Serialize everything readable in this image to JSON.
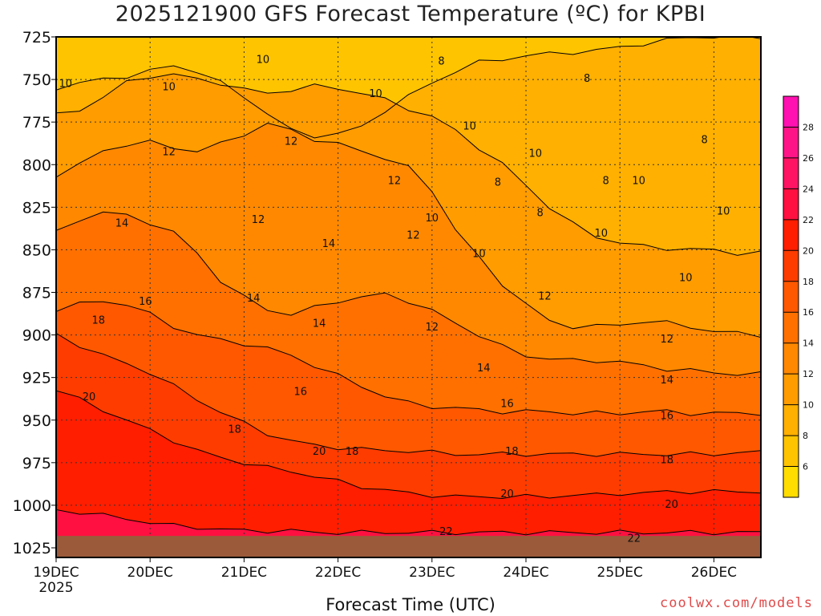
{
  "title": "2025121900 GFS Forecast Temperature (ºC) for KPBI",
  "xlabel": "Forecast Time (UTC)",
  "credit": "coolwx.com/models",
  "colors": {
    "frame": "#000000",
    "ground": "#9b5a3a",
    "grid": "#333333"
  },
  "chart_data": {
    "type": "heatmap",
    "title": "2025121900 GFS Forecast Temperature (ºC) for KPBI",
    "xlabel": "Forecast Time (UTC)",
    "ylabel": "",
    "x_ticks": [
      "19DEC",
      "20DEC",
      "21DEC",
      "22DEC",
      "23DEC",
      "24DEC",
      "25DEC",
      "26DEC"
    ],
    "x_year": "2025",
    "y_ticks": [
      725,
      750,
      775,
      800,
      825,
      850,
      875,
      900,
      925,
      950,
      975,
      1000,
      1025
    ],
    "ylim": [
      725,
      1025
    ],
    "y_inverted": true,
    "colorbar": {
      "ticks": [
        6,
        8,
        10,
        12,
        14,
        16,
        18,
        20,
        22,
        24,
        26,
        28
      ],
      "range": [
        4,
        30
      ],
      "colors": [
        "#ffdd00",
        "#ffc400",
        "#ffb000",
        "#ff9c00",
        "#ff8800",
        "#ff7000",
        "#ff5800",
        "#ff3c00",
        "#ff1e00",
        "#ff1040",
        "#ff1464",
        "#ff1488",
        "#ff10b0"
      ]
    },
    "isotherms": [
      {
        "value": 8,
        "levels": [
          [
            0,
            755
          ],
          [
            1,
            752
          ],
          [
            2,
            750
          ],
          [
            3,
            748
          ],
          [
            4,
            745
          ],
          [
            5,
            742
          ],
          [
            6,
            745
          ],
          [
            7,
            752
          ],
          [
            8,
            760
          ],
          [
            9,
            770
          ],
          [
            10,
            780
          ],
          [
            11,
            783
          ],
          [
            12,
            782
          ],
          [
            13,
            778
          ],
          [
            14,
            768
          ],
          [
            15,
            760
          ],
          [
            16,
            752
          ],
          [
            17,
            745
          ],
          [
            18,
            740
          ],
          [
            19,
            738
          ],
          [
            20,
            736
          ],
          [
            21,
            735
          ],
          [
            22,
            734
          ],
          [
            23,
            733
          ],
          [
            24,
            731
          ],
          [
            25,
            729
          ],
          [
            26,
            727
          ],
          [
            27,
            725
          ],
          [
            28,
            725
          ],
          [
            29,
            725
          ],
          [
            30,
            725
          ]
        ]
      },
      {
        "value": 10,
        "levels": [
          [
            0,
            771
          ],
          [
            1,
            768
          ],
          [
            2,
            760
          ],
          [
            3,
            752
          ],
          [
            4,
            748
          ],
          [
            5,
            747
          ],
          [
            6,
            750
          ],
          [
            7,
            752
          ],
          [
            8,
            756
          ],
          [
            9,
            758
          ],
          [
            10,
            756
          ],
          [
            11,
            754
          ],
          [
            12,
            755
          ],
          [
            13,
            758
          ],
          [
            14,
            762
          ],
          [
            15,
            767
          ],
          [
            16,
            772
          ],
          [
            17,
            780
          ],
          [
            18,
            790
          ],
          [
            19,
            800
          ],
          [
            20,
            812
          ],
          [
            21,
            825
          ],
          [
            22,
            835
          ],
          [
            23,
            842
          ],
          [
            24,
            846
          ],
          [
            25,
            848
          ],
          [
            26,
            849
          ],
          [
            27,
            850
          ],
          [
            28,
            850
          ],
          [
            29,
            852
          ],
          [
            30,
            852
          ]
        ]
      },
      {
        "value": 12,
        "levels": [
          [
            0,
            806
          ],
          [
            1,
            800
          ],
          [
            2,
            792
          ],
          [
            3,
            788
          ],
          [
            4,
            787
          ],
          [
            5,
            790
          ],
          [
            6,
            792
          ],
          [
            7,
            788
          ],
          [
            8,
            782
          ],
          [
            9,
            776
          ],
          [
            10,
            780
          ],
          [
            11,
            785
          ],
          [
            12,
            788
          ],
          [
            13,
            792
          ],
          [
            14,
            796
          ],
          [
            15,
            802
          ],
          [
            16,
            815
          ],
          [
            17,
            838
          ],
          [
            18,
            855
          ],
          [
            19,
            870
          ],
          [
            20,
            882
          ],
          [
            21,
            892
          ],
          [
            22,
            895
          ],
          [
            23,
            895
          ],
          [
            24,
            894
          ],
          [
            25,
            892
          ],
          [
            26,
            893
          ],
          [
            27,
            895
          ],
          [
            28,
            898
          ],
          [
            29,
            899
          ],
          [
            30,
            900
          ]
        ]
      },
      {
        "value": 14,
        "levels": [
          [
            0,
            840
          ],
          [
            1,
            832
          ],
          [
            2,
            828
          ],
          [
            3,
            830
          ],
          [
            4,
            834
          ],
          [
            5,
            840
          ],
          [
            6,
            852
          ],
          [
            7,
            868
          ],
          [
            8,
            878
          ],
          [
            9,
            885
          ],
          [
            10,
            888
          ],
          [
            11,
            884
          ],
          [
            12,
            880
          ],
          [
            13,
            878
          ],
          [
            14,
            876
          ],
          [
            15,
            880
          ],
          [
            16,
            886
          ],
          [
            17,
            893
          ],
          [
            18,
            900
          ],
          [
            19,
            907
          ],
          [
            20,
            912
          ],
          [
            21,
            914
          ],
          [
            22,
            915
          ],
          [
            23,
            915
          ],
          [
            24,
            916
          ],
          [
            25,
            918
          ],
          [
            26,
            920
          ],
          [
            27,
            921
          ],
          [
            28,
            922
          ],
          [
            29,
            923
          ],
          [
            30,
            923
          ]
        ]
      },
      {
        "value": 16,
        "levels": [
          [
            0,
            885
          ],
          [
            1,
            882
          ],
          [
            2,
            880
          ],
          [
            3,
            882
          ],
          [
            4,
            888
          ],
          [
            5,
            895
          ],
          [
            6,
            900
          ],
          [
            7,
            903
          ],
          [
            8,
            905
          ],
          [
            9,
            908
          ],
          [
            10,
            912
          ],
          [
            11,
            918
          ],
          [
            12,
            924
          ],
          [
            13,
            930
          ],
          [
            14,
            936
          ],
          [
            15,
            940
          ],
          [
            16,
            942
          ],
          [
            17,
            943
          ],
          [
            18,
            944
          ],
          [
            19,
            945
          ],
          [
            20,
            945
          ],
          [
            21,
            945
          ],
          [
            22,
            946
          ],
          [
            23,
            946
          ],
          [
            24,
            946
          ],
          [
            25,
            945
          ],
          [
            26,
            945
          ],
          [
            27,
            946
          ],
          [
            28,
            946
          ],
          [
            29,
            946
          ],
          [
            30,
            946
          ]
        ]
      },
      {
        "value": 18,
        "levels": [
          [
            0,
            900
          ],
          [
            1,
            906
          ],
          [
            2,
            912
          ],
          [
            3,
            917
          ],
          [
            4,
            922
          ],
          [
            5,
            930
          ],
          [
            6,
            938
          ],
          [
            7,
            945
          ],
          [
            8,
            952
          ],
          [
            9,
            958
          ],
          [
            10,
            962
          ],
          [
            11,
            965
          ],
          [
            12,
            966
          ],
          [
            13,
            967
          ],
          [
            14,
            968
          ],
          [
            15,
            968
          ],
          [
            16,
            969
          ],
          [
            17,
            970
          ],
          [
            18,
            970
          ],
          [
            19,
            970
          ],
          [
            20,
            970
          ],
          [
            21,
            970
          ],
          [
            22,
            970
          ],
          [
            23,
            970
          ],
          [
            24,
            970
          ],
          [
            25,
            970
          ],
          [
            26,
            970
          ],
          [
            27,
            970
          ],
          [
            28,
            970
          ],
          [
            29,
            969
          ],
          [
            30,
            969
          ]
        ]
      },
      {
        "value": 20,
        "levels": [
          [
            0,
            932
          ],
          [
            1,
            938
          ],
          [
            2,
            944
          ],
          [
            3,
            950
          ],
          [
            4,
            956
          ],
          [
            5,
            962
          ],
          [
            6,
            968
          ],
          [
            7,
            972
          ],
          [
            8,
            975
          ],
          [
            9,
            978
          ],
          [
            10,
            980
          ],
          [
            11,
            983
          ],
          [
            12,
            986
          ],
          [
            13,
            989
          ],
          [
            14,
            991
          ],
          [
            15,
            993
          ],
          [
            16,
            994
          ],
          [
            17,
            995
          ],
          [
            18,
            995
          ],
          [
            19,
            995
          ],
          [
            20,
            995
          ],
          [
            21,
            995
          ],
          [
            22,
            994
          ],
          [
            23,
            994
          ],
          [
            24,
            993
          ],
          [
            25,
            993
          ],
          [
            26,
            992
          ],
          [
            27,
            992
          ],
          [
            28,
            992
          ],
          [
            29,
            992
          ],
          [
            30,
            992
          ]
        ]
      },
      {
        "value": 22,
        "levels": [
          [
            0,
            1003
          ],
          [
            1,
            1004
          ],
          [
            2,
            1006
          ],
          [
            3,
            1008
          ],
          [
            4,
            1010
          ],
          [
            5,
            1012
          ],
          [
            6,
            1013
          ],
          [
            7,
            1014
          ],
          [
            8,
            1015
          ],
          [
            9,
            1015
          ],
          [
            10,
            1015
          ],
          [
            11,
            1016
          ],
          [
            12,
            1016
          ],
          [
            13,
            1016
          ],
          [
            14,
            1016
          ],
          [
            15,
            1016
          ],
          [
            16,
            1016
          ],
          [
            17,
            1016
          ],
          [
            18,
            1016
          ],
          [
            19,
            1016
          ],
          [
            20,
            1016
          ],
          [
            21,
            1016
          ],
          [
            22,
            1016
          ],
          [
            23,
            1016
          ],
          [
            24,
            1016
          ],
          [
            25,
            1016
          ],
          [
            26,
            1016
          ],
          [
            27,
            1016
          ],
          [
            28,
            1016
          ],
          [
            29,
            1016
          ],
          [
            30,
            1016
          ]
        ]
      }
    ],
    "contour_labels": [
      {
        "text": "10",
        "x": 0.1,
        "p": 752
      },
      {
        "text": "10",
        "x": 1.2,
        "p": 754
      },
      {
        "text": "10",
        "x": 2.2,
        "p": 738
      },
      {
        "text": "8",
        "x": 4.1,
        "p": 739
      },
      {
        "text": "10",
        "x": 3.4,
        "p": 758
      },
      {
        "text": "8",
        "x": 5.65,
        "p": 749
      },
      {
        "text": "10",
        "x": 4.4,
        "p": 777
      },
      {
        "text": "12",
        "x": 1.2,
        "p": 792
      },
      {
        "text": "12",
        "x": 2.5,
        "p": 786
      },
      {
        "text": "12",
        "x": 3.6,
        "p": 809
      },
      {
        "text": "10",
        "x": 5.1,
        "p": 793
      },
      {
        "text": "8",
        "x": 4.7,
        "p": 810
      },
      {
        "text": "10",
        "x": 6.2,
        "p": 809
      },
      {
        "text": "8",
        "x": 5.15,
        "p": 828
      },
      {
        "text": "8",
        "x": 5.85,
        "p": 809
      },
      {
        "text": "8",
        "x": 6.9,
        "p": 785
      },
      {
        "text": "10",
        "x": 4.0,
        "p": 831
      },
      {
        "text": "12",
        "x": 2.15,
        "p": 832
      },
      {
        "text": "12",
        "x": 3.8,
        "p": 841
      },
      {
        "text": "14",
        "x": 0.7,
        "p": 834
      },
      {
        "text": "14",
        "x": 2.9,
        "p": 846
      },
      {
        "text": "10",
        "x": 4.5,
        "p": 852
      },
      {
        "text": "10",
        "x": 5.8,
        "p": 840
      },
      {
        "text": "10",
        "x": 7.1,
        "p": 827
      },
      {
        "text": "10",
        "x": 6.7,
        "p": 866
      },
      {
        "text": "12",
        "x": 5.2,
        "p": 877
      },
      {
        "text": "12",
        "x": 4.0,
        "p": 895
      },
      {
        "text": "14",
        "x": 2.1,
        "p": 878
      },
      {
        "text": "14",
        "x": 2.8,
        "p": 893
      },
      {
        "text": "16",
        "x": 0.95,
        "p": 880
      },
      {
        "text": "18",
        "x": 0.45,
        "p": 891
      },
      {
        "text": "12",
        "x": 6.5,
        "p": 902
      },
      {
        "text": "14",
        "x": 4.55,
        "p": 919
      },
      {
        "text": "14",
        "x": 6.5,
        "p": 926
      },
      {
        "text": "16",
        "x": 2.6,
        "p": 933
      },
      {
        "text": "16",
        "x": 4.8,
        "p": 940
      },
      {
        "text": "16",
        "x": 6.5,
        "p": 947
      },
      {
        "text": "20",
        "x": 0.35,
        "p": 936
      },
      {
        "text": "18",
        "x": 1.9,
        "p": 955
      },
      {
        "text": "20",
        "x": 2.8,
        "p": 968
      },
      {
        "text": "18",
        "x": 3.15,
        "p": 968
      },
      {
        "text": "18",
        "x": 4.85,
        "p": 968
      },
      {
        "text": "18",
        "x": 6.5,
        "p": 973
      },
      {
        "text": "20",
        "x": 4.8,
        "p": 993
      },
      {
        "text": "20",
        "x": 6.55,
        "p": 999
      },
      {
        "text": "22",
        "x": 4.15,
        "p": 1015
      },
      {
        "text": "22",
        "x": 6.15,
        "p": 1019
      }
    ],
    "ground_level": 1018
  }
}
